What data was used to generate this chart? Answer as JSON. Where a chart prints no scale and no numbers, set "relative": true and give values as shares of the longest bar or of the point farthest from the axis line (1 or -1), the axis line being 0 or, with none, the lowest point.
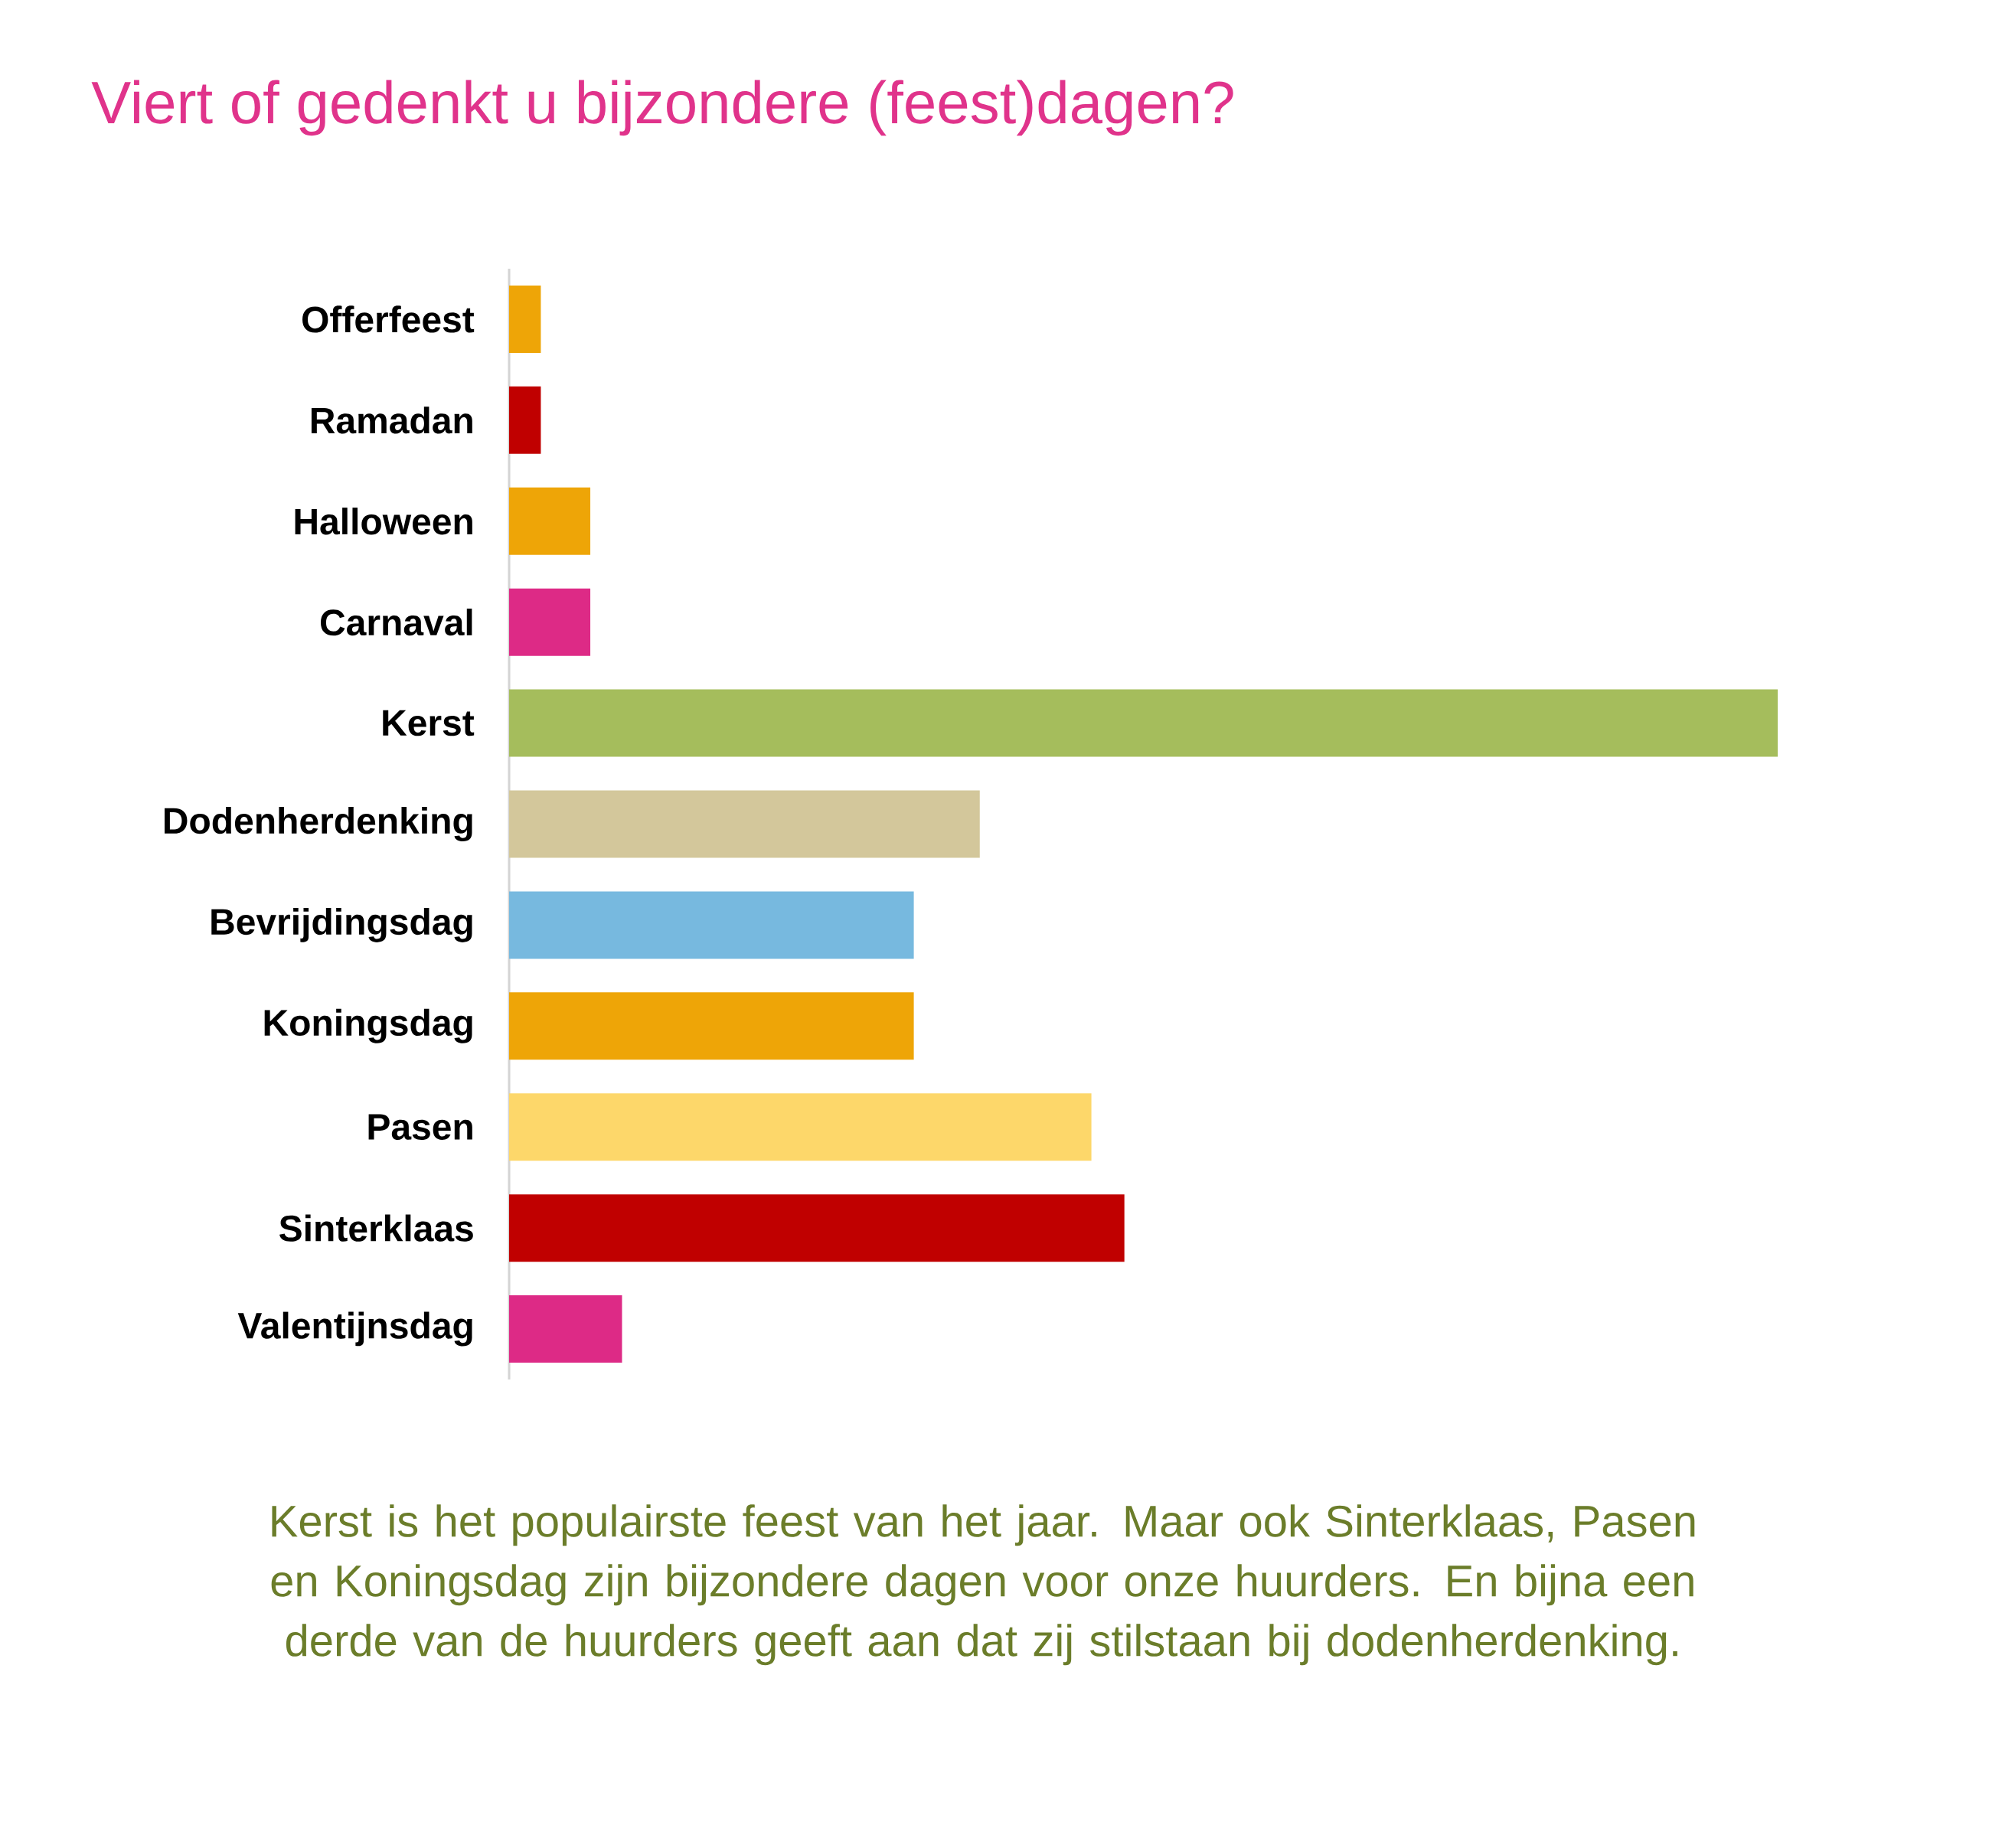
{
  "chart_data": {
    "type": "bar",
    "orientation": "horizontal",
    "relative": true,
    "title": "Viert of gedenkt u bijzondere (feest)dagen?",
    "categories": [
      "Offerfeest",
      "Ramadan",
      "Halloween",
      "Carnaval",
      "Kerst",
      "Dodenherdenking",
      "Bevrijdingsdag",
      "Koningsdag",
      "Pasen",
      "Sinterklaas",
      "Valentijnsdag"
    ],
    "values": [
      0.025,
      0.025,
      0.064,
      0.064,
      1,
      0.371,
      0.319,
      0.319,
      0.459,
      0.485,
      0.089
    ],
    "colors": [
      "#eea507",
      "#c00000",
      "#eea507",
      "#dd2a86",
      "#a5bd5c",
      "#d3c79b",
      "#77b9df",
      "#eea507",
      "#fdd76a",
      "#c00000",
      "#dd2a86"
    ],
    "annotations": [
      "Kerst is het populairste feest van het jaar. Maar ook Sinterklaas, Pasen en Koningsdag zijn bijzondere dagen voor onze huurders. En bijna een derde van de huurders geeft aan dat zij stilstaan bij dodenherdenking."
    ]
  }
}
